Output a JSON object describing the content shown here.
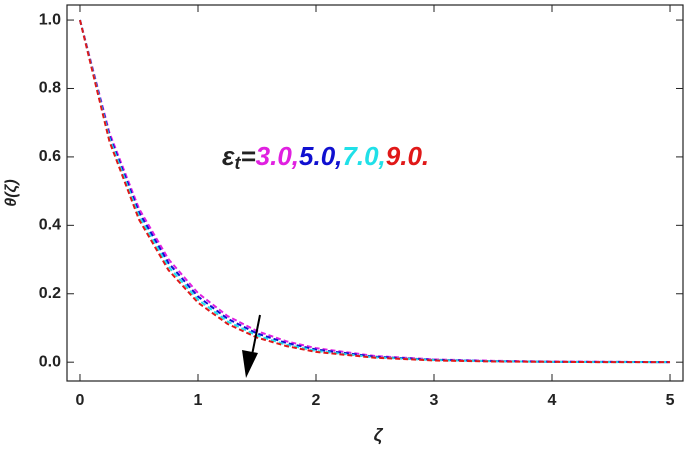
{
  "chart_data": {
    "type": "line",
    "x_label": "ζ",
    "y_label": "θ(ζ)",
    "annotation": {
      "symbol": "ε",
      "subscript": "t",
      "equals": "="
    },
    "x": [
      0,
      0.25,
      0.5,
      0.75,
      1,
      1.25,
      1.5,
      1.75,
      2,
      2.5,
      3,
      3.5,
      4,
      4.5,
      5
    ],
    "series": [
      {
        "name": "3.0,",
        "color": "#e020e0",
        "values": [
          1,
          0.67,
          0.449,
          0.301,
          0.202,
          0.135,
          0.091,
          0.061,
          0.041,
          0.018,
          0.008,
          0.004,
          0.002,
          0.001,
          0.0
        ]
      },
      {
        "name": "5.0,",
        "color": "#1010d0",
        "values": [
          1,
          0.662,
          0.438,
          0.29,
          0.192,
          0.127,
          0.084,
          0.056,
          0.037,
          0.016,
          0.007,
          0.003,
          0.001,
          0.001,
          0.0
        ]
      },
      {
        "name": "7.0,",
        "color": "#20e0e8",
        "values": [
          1,
          0.654,
          0.427,
          0.279,
          0.183,
          0.119,
          0.078,
          0.051,
          0.033,
          0.014,
          0.006,
          0.003,
          0.001,
          0.0,
          0.0
        ]
      },
      {
        "name": "9.0.",
        "color": "#e01818",
        "values": [
          1,
          0.645,
          0.417,
          0.269,
          0.174,
          0.112,
          0.072,
          0.047,
          0.03,
          0.013,
          0.005,
          0.002,
          0.001,
          0.0,
          0.0
        ]
      }
    ],
    "xlim": [
      -0.11,
      5.11
    ],
    "ylim": [
      -0.055,
      1.044
    ],
    "xticks": [
      0,
      1,
      2,
      3,
      4,
      5
    ],
    "yticks": [
      {
        "value": 0,
        "label": "0.0"
      },
      {
        "value": 0.2,
        "label": "0.2"
      },
      {
        "value": 0.4,
        "label": "0.4"
      },
      {
        "value": 0.6,
        "label": "0.6"
      },
      {
        "value": 0.8,
        "label": "0.8"
      },
      {
        "value": 1,
        "label": "1.0"
      }
    ],
    "line_style": "dashed"
  }
}
